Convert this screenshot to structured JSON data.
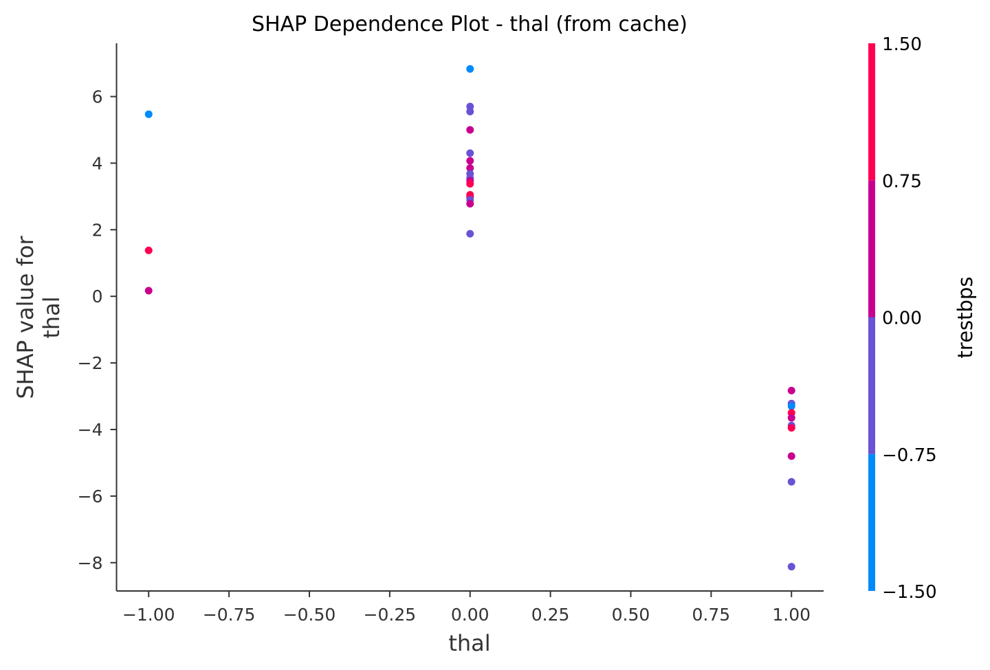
{
  "chart_data": {
    "type": "scatter",
    "title": "SHAP Dependence Plot - thal (from cache)",
    "xlabel": "thal",
    "ylabel_lines": [
      "SHAP value for",
      "thal"
    ],
    "xlim": [
      -1.1,
      1.1
    ],
    "ylim": [
      -8.85,
      7.6
    ],
    "x_ticks": [
      -1.0,
      -0.75,
      -0.5,
      -0.25,
      0.0,
      0.25,
      0.5,
      0.75,
      1.0
    ],
    "x_tick_labels": [
      "−1.00",
      "−0.75",
      "−0.50",
      "−0.25",
      "0.00",
      "0.25",
      "0.50",
      "0.75",
      "1.00"
    ],
    "y_ticks": [
      -8,
      -6,
      -4,
      -2,
      0,
      2,
      4,
      6
    ],
    "y_tick_labels": [
      "−8",
      "−6",
      "−4",
      "−2",
      "0",
      "2",
      "4",
      "6"
    ],
    "grid": false,
    "colorbar": {
      "label": "trestbps",
      "range": [
        -1.5,
        1.5
      ],
      "ticks": [
        -1.5,
        -0.75,
        0.0,
        0.75,
        1.5
      ],
      "tick_labels": [
        "−1.50",
        "−0.75",
        "0.00",
        "0.75",
        "1.50"
      ],
      "bands": [
        {
          "from": -1.5,
          "to": -0.75,
          "color": "#008bfb"
        },
        {
          "from": -0.75,
          "to": 0.0,
          "color": "#6a52d5"
        },
        {
          "from": 0.0,
          "to": 0.75,
          "color": "#c9008f"
        },
        {
          "from": 0.75,
          "to": 1.5,
          "color": "#ff0052"
        }
      ]
    },
    "points": [
      {
        "x": -1.0,
        "y": 5.47,
        "c": -1.2
      },
      {
        "x": -1.0,
        "y": 1.38,
        "c": 1.1
      },
      {
        "x": -1.0,
        "y": 0.17,
        "c": 0.4
      },
      {
        "x": 0.0,
        "y": 6.83,
        "c": -1.2
      },
      {
        "x": 0.0,
        "y": 5.7,
        "c": -0.4
      },
      {
        "x": 0.0,
        "y": 5.55,
        "c": -0.4
      },
      {
        "x": 0.0,
        "y": 5.0,
        "c": 0.4
      },
      {
        "x": 0.0,
        "y": 4.3,
        "c": -0.4
      },
      {
        "x": 0.0,
        "y": 4.07,
        "c": 0.4
      },
      {
        "x": 0.0,
        "y": 3.85,
        "c": 0.4
      },
      {
        "x": 0.0,
        "y": 3.68,
        "c": -0.4
      },
      {
        "x": 0.0,
        "y": 3.55,
        "c": -0.4
      },
      {
        "x": 0.0,
        "y": 3.47,
        "c": 0.4
      },
      {
        "x": 0.0,
        "y": 3.38,
        "c": 1.1
      },
      {
        "x": 0.0,
        "y": 3.05,
        "c": 1.1
      },
      {
        "x": 0.0,
        "y": 2.98,
        "c": 1.1
      },
      {
        "x": 0.0,
        "y": 2.9,
        "c": -0.4
      },
      {
        "x": 0.0,
        "y": 2.78,
        "c": 0.4
      },
      {
        "x": 0.0,
        "y": 1.88,
        "c": -0.4
      },
      {
        "x": 1.0,
        "y": -2.83,
        "c": 0.4
      },
      {
        "x": 1.0,
        "y": -3.22,
        "c": -0.4
      },
      {
        "x": 1.0,
        "y": -3.3,
        "c": -1.2
      },
      {
        "x": 1.0,
        "y": -3.5,
        "c": 1.1
      },
      {
        "x": 1.0,
        "y": -3.65,
        "c": 0.4
      },
      {
        "x": 1.0,
        "y": -3.88,
        "c": -0.4
      },
      {
        "x": 1.0,
        "y": -3.95,
        "c": 1.1
      },
      {
        "x": 1.0,
        "y": -4.8,
        "c": 0.4
      },
      {
        "x": 1.0,
        "y": -5.57,
        "c": -0.4
      },
      {
        "x": 1.0,
        "y": -8.12,
        "c": -0.4
      }
    ]
  }
}
